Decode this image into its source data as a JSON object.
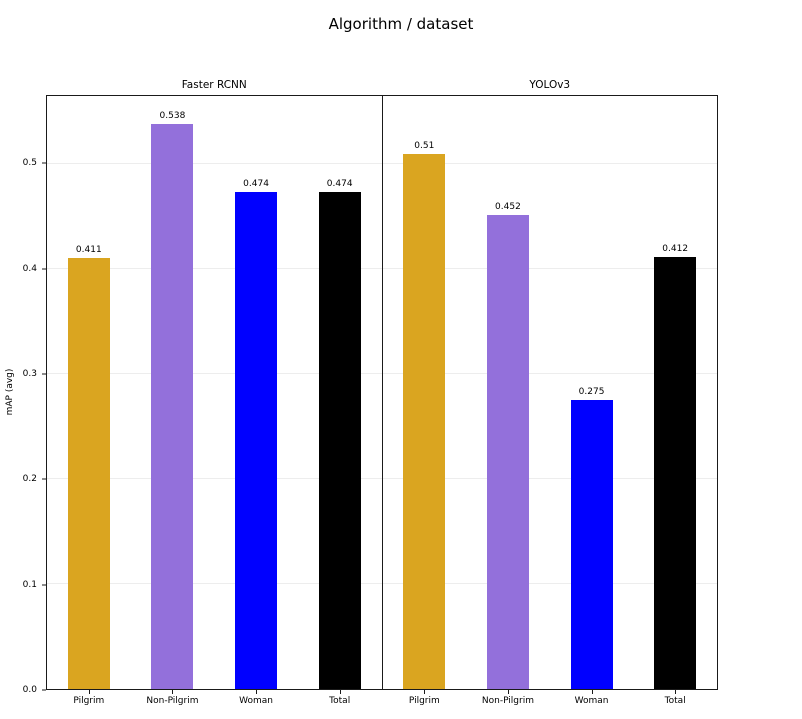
{
  "chart_data": {
    "type": "bar",
    "title": "Algorithm / dataset",
    "ylabel": "mAP (avg)",
    "categories": [
      "Pilgrim",
      "Non-Pilgrim",
      "Woman",
      "Total"
    ],
    "bar_colors": [
      "#DAA520",
      "#9370DB",
      "#0000FF",
      "#000000"
    ],
    "panels": [
      {
        "name": "Faster RCNN",
        "values": [
          0.411,
          0.538,
          0.474,
          0.474
        ],
        "labels": [
          "0.411",
          "0.538",
          "0.474",
          "0.474"
        ]
      },
      {
        "name": "YOLOv3",
        "values": [
          0.51,
          0.452,
          0.275,
          0.412
        ],
        "labels": [
          "0.51",
          "0.452",
          "0.275",
          "0.412"
        ]
      }
    ],
    "yticks": [
      0.0,
      0.1,
      0.2,
      0.3,
      0.4,
      0.5
    ],
    "ylim": [
      0,
      0.565
    ],
    "grid": true,
    "legend_position": "none"
  }
}
